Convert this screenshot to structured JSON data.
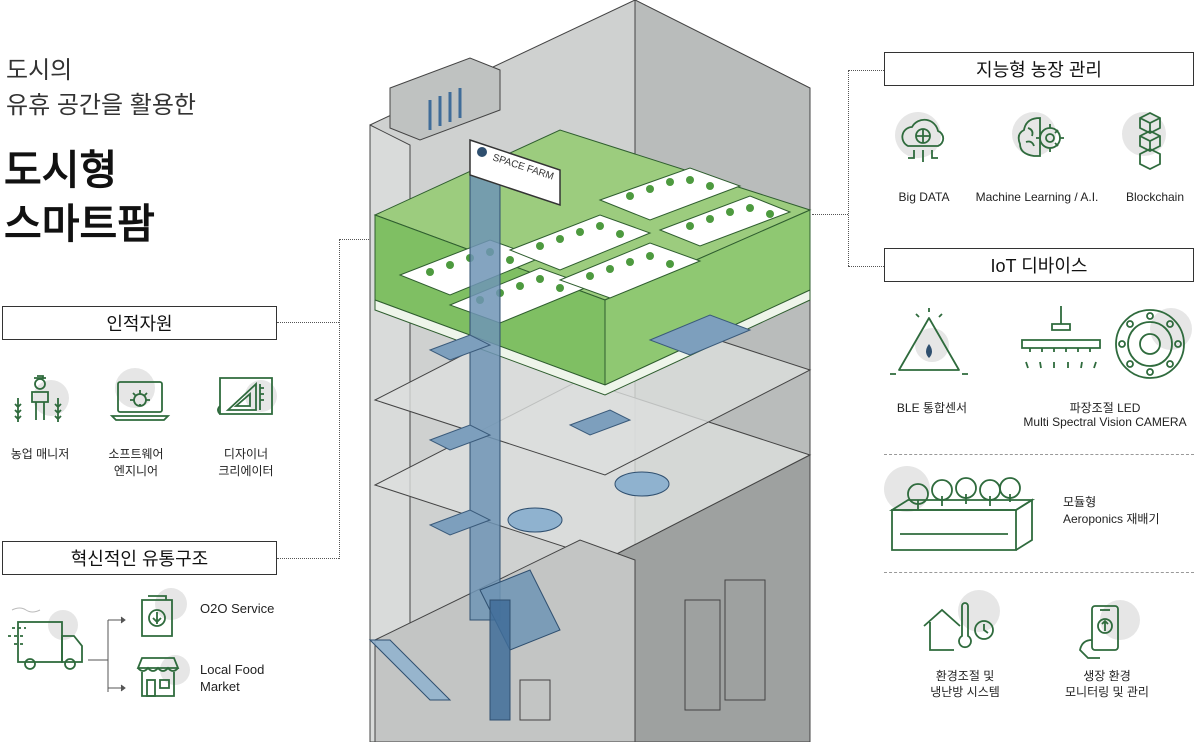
{
  "headline": {
    "line1": "도시의",
    "line2": "유휴 공간을 활용한",
    "main1": "도시형",
    "main2": "스마트팜"
  },
  "sections": {
    "human": {
      "title": "인적자원",
      "items": [
        {
          "label1": "농업 매니저",
          "label2": "",
          "icon": "farmer-icon"
        },
        {
          "label1": "소프트웨어",
          "label2": "엔지니어",
          "icon": "laptop-gear-icon"
        },
        {
          "label1": "디자이너",
          "label2": "크리에이터",
          "icon": "blueprint-ruler-icon"
        }
      ]
    },
    "distribution": {
      "title": "혁신적인 유통구조",
      "items": [
        {
          "label1": "O2O Service",
          "label2": "",
          "icon": "produce-bag-icon"
        },
        {
          "label1": "Local Food",
          "label2": "Market",
          "icon": "storefront-icon"
        }
      ],
      "truck_icon": "delivery-truck-icon"
    },
    "farm": {
      "title": "지능형 농장 관리",
      "items": [
        {
          "label": "Big DATA",
          "icon": "cloud-globe-icon"
        },
        {
          "label": "Machine Learning / A.I.",
          "icon": "brain-gear-icon"
        },
        {
          "label": "Blockchain",
          "icon": "blockchain-cubes-icon"
        }
      ]
    },
    "iot": {
      "title": "IoT 디바이스",
      "ble": "BLE 통합센서",
      "led1": "파장조절 LED",
      "led2": "Multi Spectral Vision CAMERA",
      "aero1": "모듈형",
      "aero2": "Aeroponics 재배기",
      "env1": "환경조절 및",
      "env2": "냉난방 시스템",
      "mon1": "생장 환경",
      "mon2": "모니터링 및 관리"
    }
  },
  "building": {
    "sign": "SPACE FARM"
  },
  "colors": {
    "accent": "#2f6b3d",
    "farm_green": "#7fbf63",
    "glass": "#c7c9c8",
    "line": "#333333"
  }
}
